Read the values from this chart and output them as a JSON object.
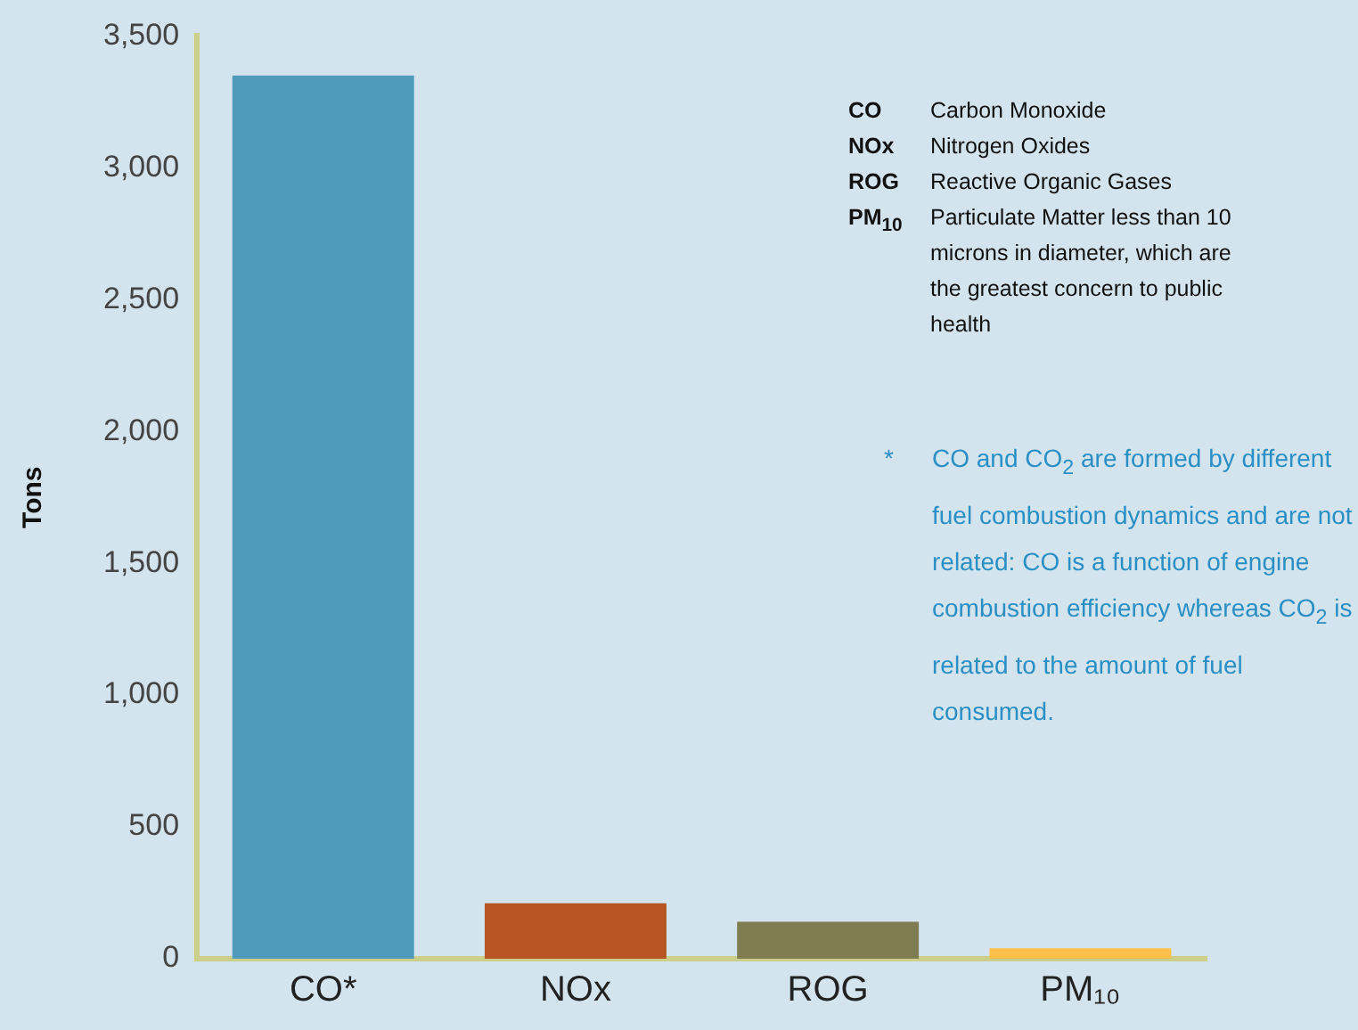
{
  "chart_data": {
    "type": "bar",
    "ylabel": "Tons",
    "categories": [
      "CO*",
      "NOx",
      "ROG",
      "PM₁₀"
    ],
    "values": [
      3350,
      210,
      140,
      40
    ],
    "colors": [
      "#509bbd",
      "#b75423",
      "#7f7c52",
      "#fdbf47"
    ],
    "ylim": [
      0,
      3500
    ],
    "yticks": [
      {
        "value": 0,
        "label": "0"
      },
      {
        "value": 500,
        "label": "500"
      },
      {
        "value": 1000,
        "label": "1,000"
      },
      {
        "value": 1500,
        "label": "1,500"
      },
      {
        "value": 2000,
        "label": "2,000"
      },
      {
        "value": 2500,
        "label": "2,500"
      },
      {
        "value": 3000,
        "label": "3,000"
      },
      {
        "value": 3500,
        "label": "3,500"
      }
    ],
    "grid": false,
    "legend": false,
    "annotations": [
      "CO",
      "Carbon Monoxide",
      "NOx",
      "Nitrogen Oxides",
      "ROG",
      "Reactive Organic Gases",
      "PM$_{10}$",
      "Particulate Matter  less than 10 microns in diameter, which are the greatest concern to public health",
      "*",
      "CO and CO$_{2}$ are formed by different fuel combustion dynamics and are not related: CO is a function of engine combustion efficiency whereas CO$_{2}$ is related to the amount of fuel consumed."
    ]
  }
}
